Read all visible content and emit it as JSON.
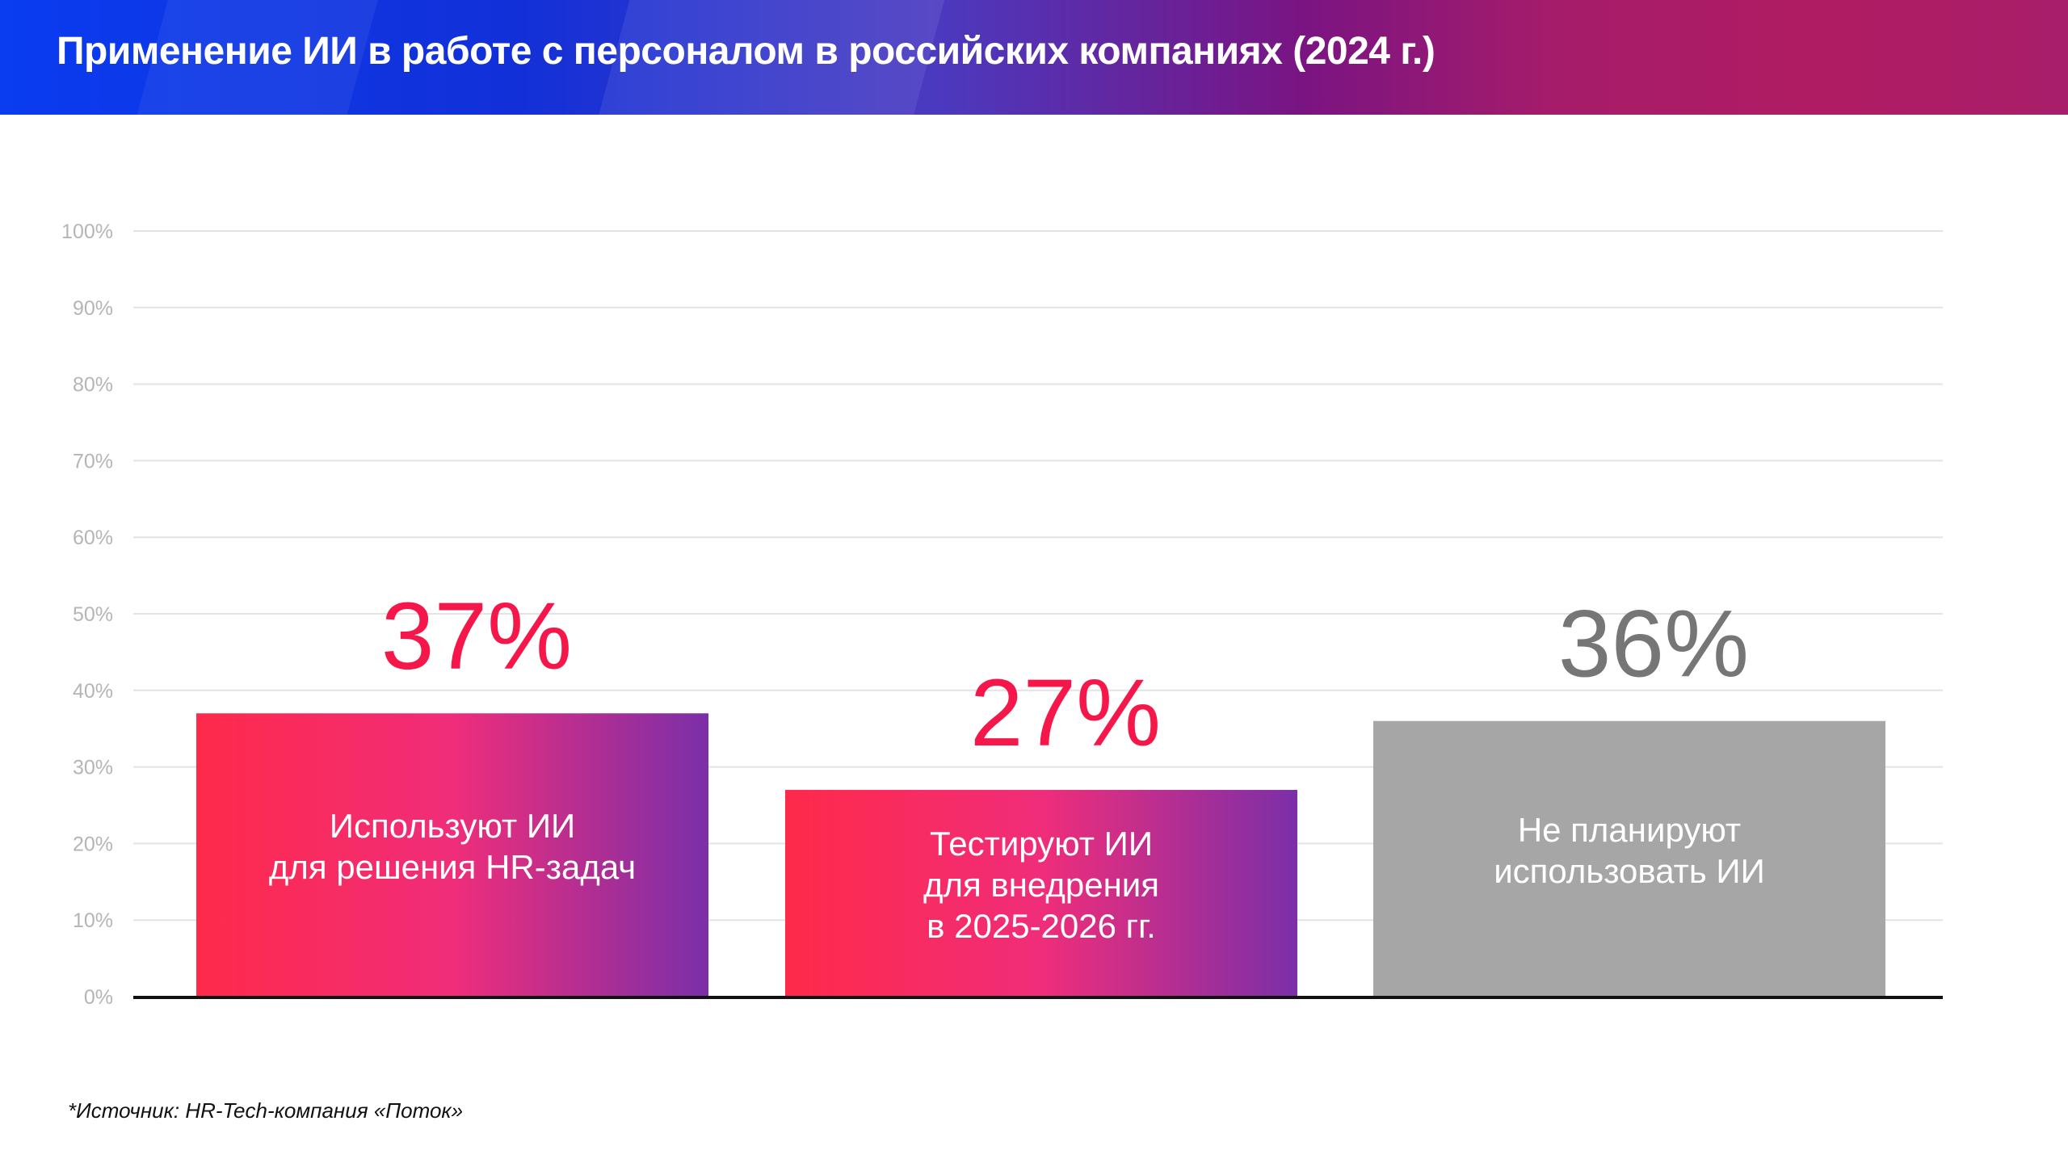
{
  "header": {
    "title": "Применение ИИ в работе с персоналом в российских компаниях (2024 г.)"
  },
  "chart_data": {
    "type": "bar",
    "title": "Применение ИИ в работе с персоналом в российских компаниях (2024 г.)",
    "categories": [
      "Используют ИИ\nдля решения HR-задач",
      "Тестируют ИИ\nдля внедрения\nв 2025-2026 гг.",
      "Не планируют\nиспользовать ИИ"
    ],
    "values": [
      37,
      27,
      36
    ],
    "data_labels": [
      "37%",
      "27%",
      "36%"
    ],
    "ylim": [
      0,
      100
    ],
    "yticks": [
      "0%",
      "10%",
      "20%",
      "30%",
      "40%",
      "50%",
      "60%",
      "70%",
      "80%",
      "90%",
      "100%"
    ],
    "grid": true,
    "colors": {
      "bar_gradient_start": "#ff2a4a",
      "bar_gradient_end": "#7b2fa8",
      "gray_bar": "#a6a6a6",
      "accent_label": "#f5174a",
      "gray_label": "#767676"
    },
    "bar_styles": [
      "gradient",
      "gradient",
      "gray"
    ]
  },
  "footer": {
    "source": "*Источник: HR-Tech-компания «Поток»"
  }
}
